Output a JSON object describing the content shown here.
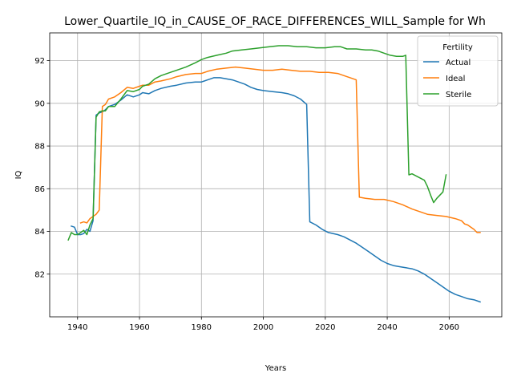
{
  "chart_data": {
    "type": "line",
    "title": "Lower_Quartile_IQ_in_CAUSE_OF_RACE_DIFFERENCES_WILL_Sample for Wh",
    "xlabel": "Years",
    "ylabel": "IQ",
    "xlim": [
      1931,
      2077
    ],
    "ylim": [
      80.0,
      93.3
    ],
    "xticks": [
      1940,
      1960,
      1980,
      2000,
      2020,
      2040,
      2060
    ],
    "yticks": [
      82,
      84,
      86,
      88,
      90,
      92
    ],
    "grid": true,
    "legend": {
      "title": "Fertility",
      "placement": "top-right"
    },
    "series": [
      {
        "name": "Actual",
        "color": "#1f77b4",
        "points": [
          [
            1938,
            84.25
          ],
          [
            1939,
            84.2
          ],
          [
            1940,
            83.85
          ],
          [
            1941,
            83.85
          ],
          [
            1942,
            83.9
          ],
          [
            1943,
            84.1
          ],
          [
            1944,
            84.0
          ],
          [
            1945,
            84.5
          ],
          [
            1946,
            89.45
          ],
          [
            1947,
            89.55
          ],
          [
            1948,
            89.6
          ],
          [
            1949,
            89.7
          ],
          [
            1950,
            89.85
          ],
          [
            1952,
            89.95
          ],
          [
            1954,
            90.15
          ],
          [
            1956,
            90.4
          ],
          [
            1958,
            90.3
          ],
          [
            1960,
            90.4
          ],
          [
            1961,
            90.5
          ],
          [
            1963,
            90.45
          ],
          [
            1965,
            90.6
          ],
          [
            1967,
            90.7
          ],
          [
            1970,
            90.8
          ],
          [
            1972,
            90.85
          ],
          [
            1975,
            90.95
          ],
          [
            1978,
            91.0
          ],
          [
            1980,
            91.0
          ],
          [
            1982,
            91.1
          ],
          [
            1984,
            91.2
          ],
          [
            1986,
            91.2
          ],
          [
            1988,
            91.15
          ],
          [
            1990,
            91.1
          ],
          [
            1992,
            91.0
          ],
          [
            1994,
            90.9
          ],
          [
            1996,
            90.75
          ],
          [
            1998,
            90.65
          ],
          [
            2000,
            90.6
          ],
          [
            2003,
            90.55
          ],
          [
            2006,
            90.5
          ],
          [
            2008,
            90.45
          ],
          [
            2010,
            90.35
          ],
          [
            2012,
            90.2
          ],
          [
            2014,
            89.95
          ],
          [
            2015,
            84.45
          ],
          [
            2017,
            84.3
          ],
          [
            2019,
            84.1
          ],
          [
            2021,
            83.95
          ],
          [
            2024,
            83.85
          ],
          [
            2026,
            83.75
          ],
          [
            2028,
            83.6
          ],
          [
            2030,
            83.45
          ],
          [
            2032,
            83.25
          ],
          [
            2034,
            83.05
          ],
          [
            2036,
            82.85
          ],
          [
            2038,
            82.65
          ],
          [
            2040,
            82.5
          ],
          [
            2042,
            82.4
          ],
          [
            2044,
            82.35
          ],
          [
            2046,
            82.3
          ],
          [
            2048,
            82.25
          ],
          [
            2050,
            82.15
          ],
          [
            2052,
            82.0
          ],
          [
            2054,
            81.8
          ],
          [
            2056,
            81.6
          ],
          [
            2058,
            81.4
          ],
          [
            2060,
            81.2
          ],
          [
            2062,
            81.05
          ],
          [
            2064,
            80.95
          ],
          [
            2066,
            80.85
          ],
          [
            2068,
            80.8
          ],
          [
            2070,
            80.7
          ]
        ]
      },
      {
        "name": "Ideal",
        "color": "#ff7f0e",
        "points": [
          [
            1941,
            84.4
          ],
          [
            1942,
            84.45
          ],
          [
            1943,
            84.4
          ],
          [
            1944,
            84.6
          ],
          [
            1945,
            84.7
          ],
          [
            1946,
            84.8
          ],
          [
            1947,
            85.0
          ],
          [
            1948,
            89.85
          ],
          [
            1949,
            89.95
          ],
          [
            1950,
            90.2
          ],
          [
            1952,
            90.3
          ],
          [
            1954,
            90.5
          ],
          [
            1956,
            90.75
          ],
          [
            1958,
            90.7
          ],
          [
            1960,
            90.8
          ],
          [
            1961,
            90.85
          ],
          [
            1963,
            90.85
          ],
          [
            1965,
            91.0
          ],
          [
            1967,
            91.05
          ],
          [
            1970,
            91.15
          ],
          [
            1972,
            91.25
          ],
          [
            1975,
            91.35
          ],
          [
            1978,
            91.4
          ],
          [
            1980,
            91.4
          ],
          [
            1982,
            91.5
          ],
          [
            1985,
            91.6
          ],
          [
            1988,
            91.65
          ],
          [
            1991,
            91.7
          ],
          [
            1994,
            91.65
          ],
          [
            1997,
            91.6
          ],
          [
            2000,
            91.55
          ],
          [
            2003,
            91.55
          ],
          [
            2006,
            91.6
          ],
          [
            2009,
            91.55
          ],
          [
            2012,
            91.5
          ],
          [
            2015,
            91.5
          ],
          [
            2018,
            91.45
          ],
          [
            2021,
            91.45
          ],
          [
            2024,
            91.4
          ],
          [
            2027,
            91.25
          ],
          [
            2029,
            91.15
          ],
          [
            2030,
            91.1
          ],
          [
            2031,
            85.6
          ],
          [
            2033,
            85.55
          ],
          [
            2036,
            85.5
          ],
          [
            2039,
            85.5
          ],
          [
            2042,
            85.4
          ],
          [
            2045,
            85.25
          ],
          [
            2048,
            85.05
          ],
          [
            2050,
            84.95
          ],
          [
            2053,
            84.8
          ],
          [
            2056,
            84.75
          ],
          [
            2059,
            84.7
          ],
          [
            2062,
            84.6
          ],
          [
            2064,
            84.5
          ],
          [
            2065,
            84.35
          ],
          [
            2066,
            84.3
          ],
          [
            2067,
            84.2
          ],
          [
            2068,
            84.1
          ],
          [
            2069,
            83.95
          ],
          [
            2070,
            83.95
          ]
        ]
      },
      {
        "name": "Sterile",
        "color": "#2ca02c",
        "points": [
          [
            1937,
            83.6
          ],
          [
            1938,
            83.95
          ],
          [
            1939,
            83.85
          ],
          [
            1940,
            83.85
          ],
          [
            1941,
            83.95
          ],
          [
            1942,
            84.05
          ],
          [
            1943,
            83.85
          ],
          [
            1944,
            84.3
          ],
          [
            1945,
            84.6
          ],
          [
            1946,
            89.35
          ],
          [
            1947,
            89.6
          ],
          [
            1948,
            89.65
          ],
          [
            1949,
            89.65
          ],
          [
            1950,
            89.85
          ],
          [
            1952,
            89.85
          ],
          [
            1954,
            90.2
          ],
          [
            1956,
            90.6
          ],
          [
            1958,
            90.55
          ],
          [
            1960,
            90.65
          ],
          [
            1961,
            90.8
          ],
          [
            1963,
            90.9
          ],
          [
            1965,
            91.15
          ],
          [
            1967,
            91.3
          ],
          [
            1970,
            91.45
          ],
          [
            1972,
            91.55
          ],
          [
            1975,
            91.7
          ],
          [
            1978,
            91.9
          ],
          [
            1980,
            92.05
          ],
          [
            1982,
            92.15
          ],
          [
            1985,
            92.25
          ],
          [
            1988,
            92.35
          ],
          [
            1990,
            92.45
          ],
          [
            1993,
            92.5
          ],
          [
            1996,
            92.55
          ],
          [
            1999,
            92.6
          ],
          [
            2002,
            92.65
          ],
          [
            2005,
            92.7
          ],
          [
            2008,
            92.7
          ],
          [
            2011,
            92.65
          ],
          [
            2014,
            92.65
          ],
          [
            2017,
            92.6
          ],
          [
            2020,
            92.6
          ],
          [
            2023,
            92.65
          ],
          [
            2025,
            92.65
          ],
          [
            2027,
            92.55
          ],
          [
            2030,
            92.55
          ],
          [
            2033,
            92.5
          ],
          [
            2035,
            92.5
          ],
          [
            2037,
            92.45
          ],
          [
            2039,
            92.35
          ],
          [
            2041,
            92.25
          ],
          [
            2043,
            92.2
          ],
          [
            2045,
            92.2
          ],
          [
            2046,
            92.25
          ],
          [
            2047,
            86.65
          ],
          [
            2048,
            86.7
          ],
          [
            2050,
            86.55
          ],
          [
            2052,
            86.4
          ],
          [
            2053,
            86.1
          ],
          [
            2054,
            85.7
          ],
          [
            2055,
            85.35
          ],
          [
            2056,
            85.55
          ],
          [
            2058,
            85.85
          ],
          [
            2059,
            86.65
          ]
        ]
      }
    ]
  }
}
